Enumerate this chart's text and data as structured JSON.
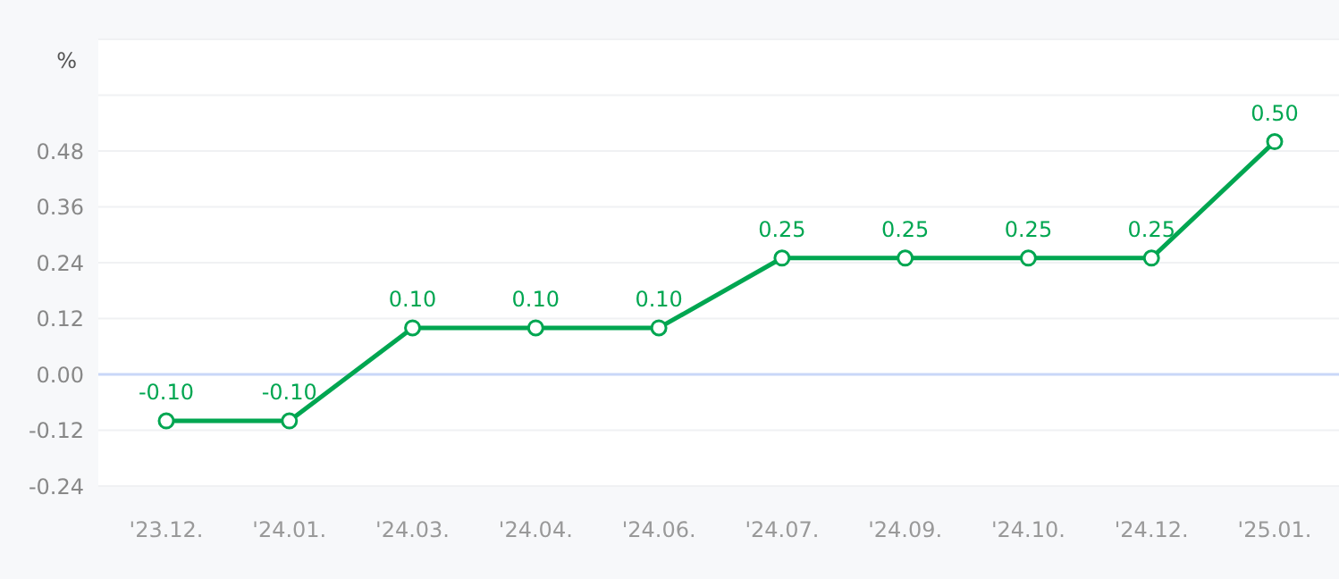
{
  "chart_data": {
    "type": "line",
    "ylabel": "%",
    "categories": [
      "'23.12.",
      "'24.01.",
      "'24.03.",
      "'24.04.",
      "'24.06.",
      "'24.07.",
      "'24.09.",
      "'24.10.",
      "'24.12.",
      "'25.01."
    ],
    "series": [
      {
        "color": "#00a651",
        "values": [
          -0.1,
          -0.1,
          0.1,
          0.1,
          0.1,
          0.25,
          0.25,
          0.25,
          0.25,
          0.5
        ]
      }
    ],
    "value_labels": [
      "-0.10",
      "-0.10",
      "0.10",
      "0.10",
      "0.10",
      "0.25",
      "0.25",
      "0.25",
      "0.25",
      "0.50"
    ],
    "ylim": [
      -0.24,
      0.72
    ],
    "yticks": [
      -0.24,
      -0.12,
      {
        "value": 0,
        "label": "0.00"
      },
      0.12,
      0.24,
      0.36,
      0.48,
      {
        "value": 0.6,
        "label": null
      },
      {
        "value": 0.72,
        "label": null
      }
    ],
    "ref_lines": [
      {
        "axis": "y",
        "value": 0,
        "color": "#c9d7f8"
      }
    ],
    "grid": "y",
    "marker": "circle",
    "line_style": "solid"
  }
}
